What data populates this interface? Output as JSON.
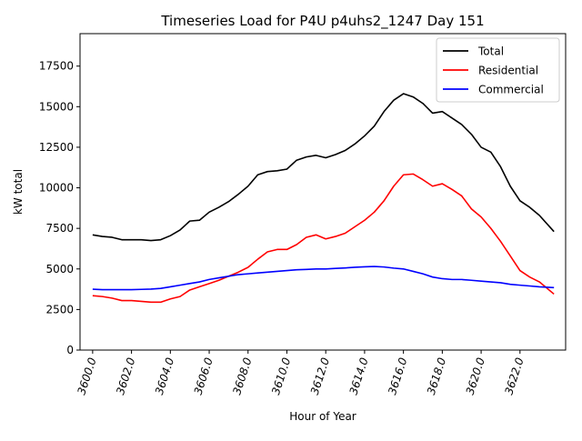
{
  "chart_data": {
    "type": "line",
    "title": "Timeseries Load for P4U p4uhs2_1247  Day 151",
    "xlabel": "Hour of Year",
    "ylabel": "kW total",
    "xlim": [
      3599.35,
      3624.35
    ],
    "ylim": [
      0,
      19500
    ],
    "xticks": [
      3600,
      3602,
      3604,
      3606,
      3608,
      3610,
      3612,
      3614,
      3616,
      3618,
      3620,
      3622
    ],
    "xtick_labels": [
      "3600.0",
      "3602.0",
      "3604.0",
      "3606.0",
      "3608.0",
      "3610.0",
      "3612.0",
      "3614.0",
      "3616.0",
      "3618.0",
      "3620.0",
      "3622.0"
    ],
    "yticks": [
      0,
      2500,
      5000,
      7500,
      10000,
      12500,
      15000,
      17500
    ],
    "ytick_labels": [
      "0",
      "2500",
      "5000",
      "7500",
      "10000",
      "12500",
      "15000",
      "17500"
    ],
    "grid": false,
    "legend_position": "top-right",
    "x": [
      3600.0,
      3600.5,
      3601.0,
      3601.5,
      3602.0,
      3602.5,
      3603.0,
      3603.5,
      3604.0,
      3604.5,
      3605.0,
      3605.5,
      3606.0,
      3606.5,
      3607.0,
      3607.5,
      3608.0,
      3608.5,
      3609.0,
      3609.5,
      3610.0,
      3610.5,
      3611.0,
      3611.5,
      3612.0,
      3612.5,
      3613.0,
      3613.5,
      3614.0,
      3614.5,
      3615.0,
      3615.5,
      3616.0,
      3616.5,
      3617.0,
      3617.5,
      3618.0,
      3618.5,
      3619.0,
      3619.5,
      3620.0,
      3620.5,
      3621.0,
      3621.5,
      3622.0,
      3622.5,
      3623.0,
      3623.75
    ],
    "series": [
      {
        "name": "Total",
        "color": "#000000",
        "values": [
          7100,
          7000,
          6950,
          6800,
          6800,
          6800,
          6750,
          6800,
          7050,
          7400,
          7950,
          8000,
          8500,
          8800,
          9150,
          9600,
          10100,
          10800,
          11000,
          11050,
          11150,
          11700,
          11900,
          12000,
          11850,
          12050,
          12300,
          12700,
          13200,
          13800,
          14700,
          15400,
          15800,
          15600,
          15200,
          14600,
          14700,
          14300,
          13900,
          13300,
          12500,
          12200,
          11300,
          10100,
          9200,
          8800,
          8300,
          7300
        ]
      },
      {
        "name": "Residential",
        "color": "#ff0000",
        "values": [
          3350,
          3300,
          3200,
          3050,
          3050,
          3000,
          2950,
          2950,
          3150,
          3300,
          3700,
          3900,
          4100,
          4300,
          4550,
          4800,
          5100,
          5600,
          6050,
          6200,
          6200,
          6500,
          6950,
          7100,
          6850,
          7000,
          7200,
          7600,
          8000,
          8500,
          9200,
          10100,
          10800,
          10850,
          10500,
          10100,
          10250,
          9900,
          9500,
          8700,
          8200,
          7500,
          6700,
          5800,
          4900,
          4500,
          4200,
          3450
        ]
      },
      {
        "name": "Commercial",
        "color": "#0000ff",
        "values": [
          3750,
          3720,
          3720,
          3720,
          3720,
          3740,
          3760,
          3800,
          3900,
          4000,
          4100,
          4200,
          4350,
          4450,
          4550,
          4650,
          4700,
          4750,
          4800,
          4850,
          4900,
          4950,
          4970,
          5000,
          5000,
          5030,
          5060,
          5100,
          5130,
          5150,
          5120,
          5050,
          5000,
          4850,
          4700,
          4500,
          4400,
          4350,
          4350,
          4300,
          4250,
          4200,
          4150,
          4050,
          4000,
          3950,
          3900,
          3850
        ]
      }
    ]
  }
}
